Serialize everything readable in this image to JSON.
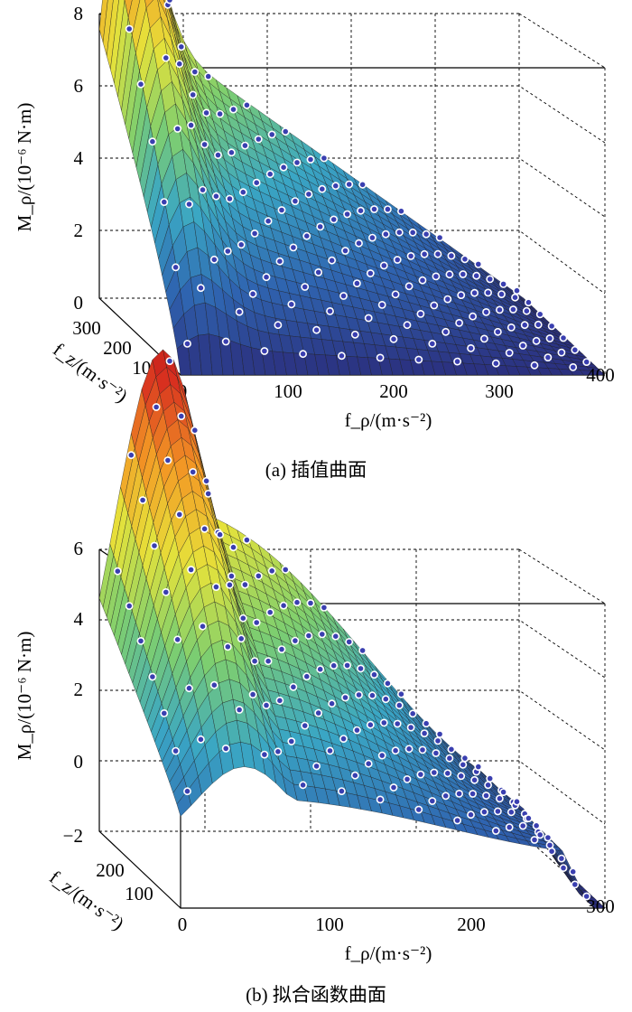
{
  "chart_data": [
    {
      "id": "a",
      "type": "surface",
      "caption": "(a) 插值曲面",
      "zlabel": "M_ρ/(10⁻⁶ N·m)",
      "xlabel": "f_ρ/(m·s⁻²)",
      "ylabel": "f_z/(m·s⁻²)",
      "xlim": [
        0,
        400
      ],
      "ylim": [
        0,
        350
      ],
      "zlim": [
        0,
        8
      ],
      "x_ticks": [
        "0",
        "100",
        "200",
        "300",
        "400"
      ],
      "y_ticks": [
        "100",
        "200",
        "300"
      ],
      "z_ticks": [
        "0",
        "2",
        "4",
        "6",
        "8"
      ],
      "peak": {
        "x": 25,
        "y": 300,
        "z": 6.7
      },
      "colormap": [
        "#2b2f7e",
        "#2f64b0",
        "#3aa6c4",
        "#7fcf6e",
        "#e6e23a",
        "#f39a25",
        "#d62a1f",
        "#951410"
      ],
      "marker_color": "#3a3fb0",
      "grid": true
    },
    {
      "id": "b",
      "type": "surface",
      "caption": "(b) 拟合函数曲面",
      "zlabel": "M_ρ/(10⁻⁶ N·m)",
      "xlabel": "f_ρ/(m·s⁻²)",
      "ylabel": "f_z/(m·s⁻²)",
      "xlim": [
        0,
        300
      ],
      "ylim": [
        0,
        250
      ],
      "zlim": [
        -2,
        6
      ],
      "x_ticks": [
        "0",
        "100",
        "200",
        "300"
      ],
      "y_ticks": [
        "100",
        "200"
      ],
      "z_ticks": [
        "−2",
        "0",
        "2",
        "4",
        "6"
      ],
      "peak": {
        "x": 45,
        "y": 220,
        "z": 5.6
      },
      "colormap": [
        "#2b2f7e",
        "#2f64b0",
        "#3aa6c4",
        "#7fcf6e",
        "#e6e23a",
        "#f39a25",
        "#d62a1f",
        "#951410"
      ],
      "marker_color": "#3a3fb0",
      "grid": true
    }
  ]
}
